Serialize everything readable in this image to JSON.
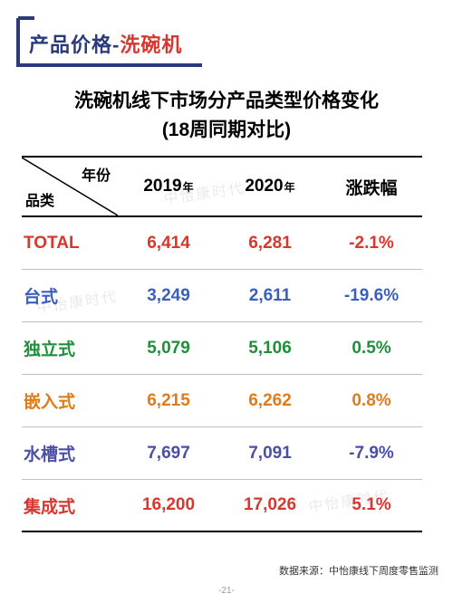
{
  "header": {
    "title_part1": "产品价格-",
    "title_part2": "洗碗机",
    "bracket_color": "#2a3a7a",
    "part1_color": "#2a3a7a",
    "part2_color": "#d9362e"
  },
  "subtitle": {
    "line1": "洗碗机线下市场分产品类型价格变化",
    "line2": "(18周同期对比)"
  },
  "table": {
    "head": {
      "year_label": "年份",
      "category_label": "品类",
      "col_2019": "2019",
      "col_2020": "2020",
      "year_suffix": "年",
      "col_change": "涨跌幅"
    },
    "rows": [
      {
        "label": "TOTAL",
        "y2019": "6,414",
        "y2020": "6,281",
        "change": "-2.1%",
        "color": "#d9362e"
      },
      {
        "label": "台式",
        "y2019": "3,249",
        "y2020": "2,611",
        "change": "-19.6%",
        "color": "#3a5fbf"
      },
      {
        "label": "独立式",
        "y2019": "5,079",
        "y2020": "5,106",
        "change": "0.5%",
        "color": "#1f8f3a"
      },
      {
        "label": "嵌入式",
        "y2019": "6,215",
        "y2020": "6,262",
        "change": "0.8%",
        "color": "#e07b1a"
      },
      {
        "label": "水槽式",
        "y2019": "7,697",
        "y2020": "7,091",
        "change": "-7.9%",
        "color": "#4a4fa8"
      },
      {
        "label": "集成式",
        "y2019": "16,200",
        "y2020": "17,026",
        "change": "5.1%",
        "color": "#d9362e"
      }
    ],
    "border_color": "#000000",
    "row_border_color": "#bfbfbf"
  },
  "footer": {
    "source": "数据来源：中怡康线下周度零售监测",
    "page": "-21-"
  },
  "watermark": "中怡康时代"
}
